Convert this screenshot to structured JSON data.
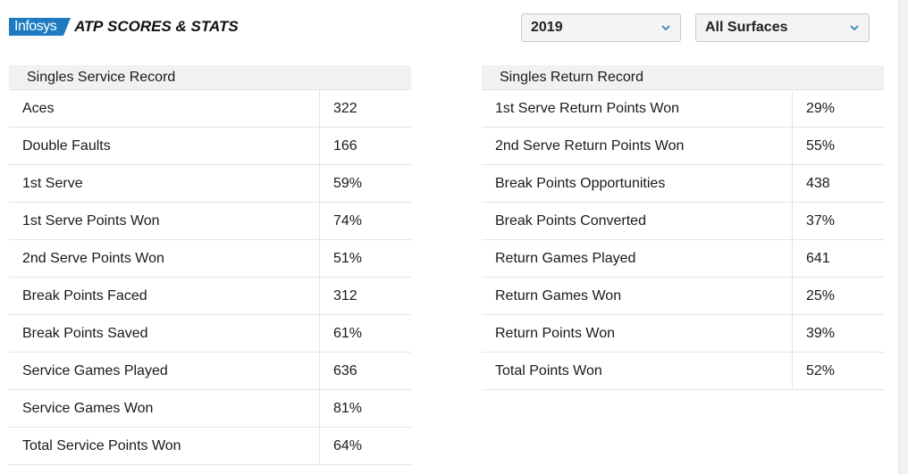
{
  "header": {
    "logo_sponsor": "Infosys",
    "logo_atp": "ATP",
    "logo_title": "SCORES & STATS"
  },
  "filters": {
    "year": "2019",
    "surface": "All Surfaces"
  },
  "colors": {
    "brand_blue": "#1f7bc1",
    "chevron": "#2a86c9",
    "header_bg": "#f1f1f1"
  },
  "service_record": {
    "title": "Singles Service Record",
    "rows": [
      {
        "label": "Aces",
        "value": "322"
      },
      {
        "label": "Double Faults",
        "value": "166"
      },
      {
        "label": "1st Serve",
        "value": "59%"
      },
      {
        "label": "1st Serve Points Won",
        "value": "74%"
      },
      {
        "label": "2nd Serve Points Won",
        "value": "51%"
      },
      {
        "label": "Break Points Faced",
        "value": "312"
      },
      {
        "label": "Break Points Saved",
        "value": "61%"
      },
      {
        "label": "Service Games Played",
        "value": "636"
      },
      {
        "label": "Service Games Won",
        "value": "81%"
      },
      {
        "label": "Total Service Points Won",
        "value": "64%"
      }
    ]
  },
  "return_record": {
    "title": "Singles Return Record",
    "rows": [
      {
        "label": "1st Serve Return Points Won",
        "value": "29%"
      },
      {
        "label": "2nd Serve Return Points Won",
        "value": "55%"
      },
      {
        "label": "Break Points Opportunities",
        "value": "438"
      },
      {
        "label": "Break Points Converted",
        "value": "37%"
      },
      {
        "label": "Return Games Played",
        "value": "641"
      },
      {
        "label": "Return Games Won",
        "value": "25%"
      },
      {
        "label": "Return Points Won",
        "value": "39%"
      },
      {
        "label": "Total Points Won",
        "value": "52%"
      }
    ]
  }
}
